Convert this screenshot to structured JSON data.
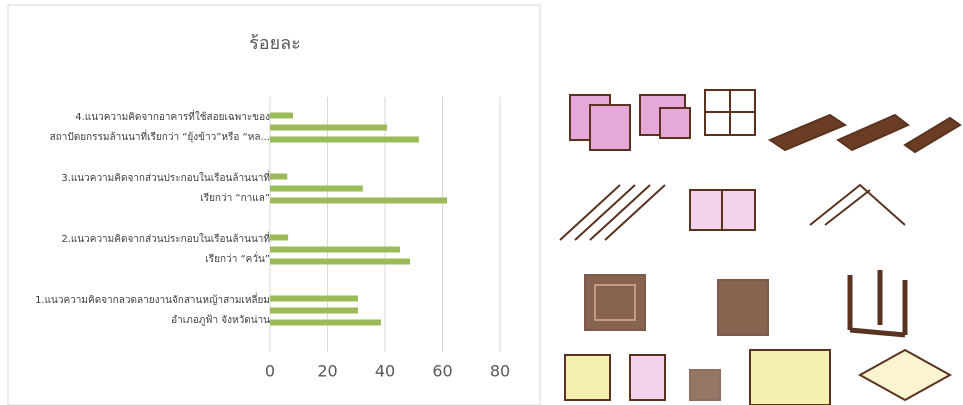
{
  "chart_data": {
    "type": "bar",
    "orientation": "horizontal",
    "title": "ร้อยละ",
    "categories": [
      "1.แนวความคิดจากลวดลายงานจักสานหญ้าสามเหลี่ยม\nอำเภอภูฟ้า จังหวัดน่าน",
      "2.แนวความคิดจากส่วนประกอบในเรือนล้านนาที่\nเรียกว่า “ควั่น”",
      "3.แนวความคิดจากส่วนประกอบในเรือนล้านนาที่\nเรียกว่า “กาแล”",
      "4.แนวความคิดจากอาคารที่ใช้สอยเฉพาะของ\nสถาปัตยกรรมล้านนาที่เรียกว่า “ยุ้งข้าว”หรือ “หล..."
    ],
    "series": [
      {
        "color": "#9bbb59",
        "values": [
          38.6,
          48.7,
          61.6,
          51.8
        ]
      },
      {
        "color": "#9bbb59",
        "values": [
          30.6,
          45.2,
          32.3,
          40.7
        ]
      },
      {
        "color": "#9bbb59",
        "values": [
          30.6,
          6.3,
          6,
          8
        ]
      }
    ],
    "xlim": [
      0,
      80
    ],
    "xticks": [
      0,
      20,
      40,
      60,
      80
    ],
    "grid": true
  }
}
